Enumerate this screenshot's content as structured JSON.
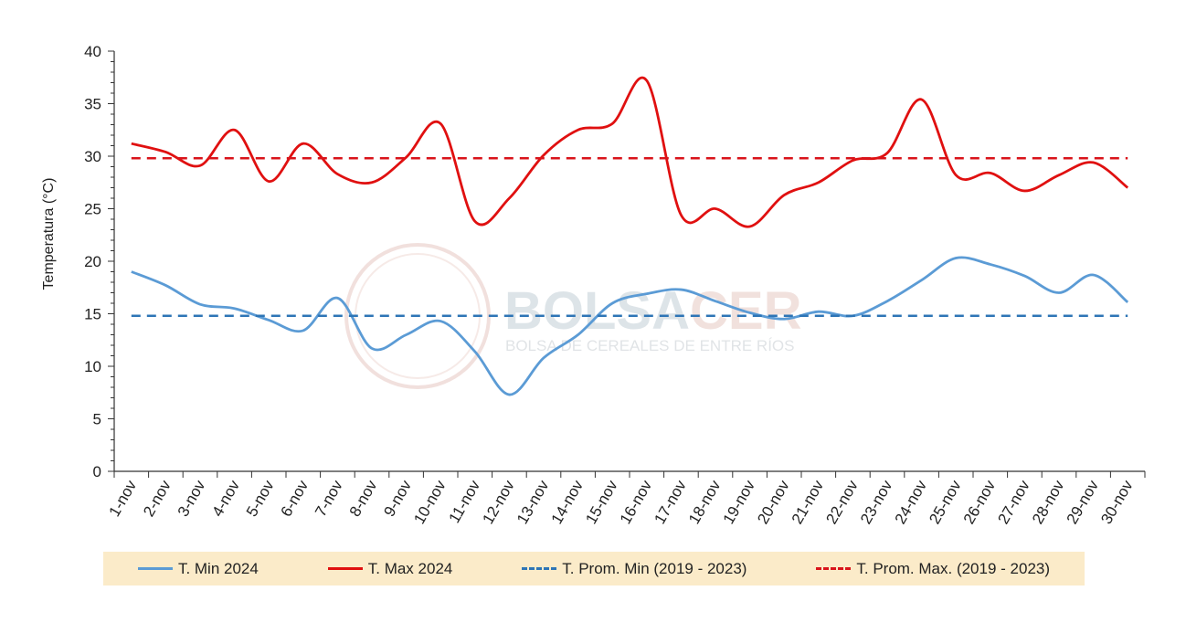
{
  "chart_data": {
    "type": "line",
    "title": "",
    "xlabel": "",
    "ylabel": "Temperatura (°C)",
    "ylim": [
      0,
      40
    ],
    "yticks": [
      0,
      5,
      10,
      15,
      20,
      25,
      30,
      35,
      40
    ],
    "grid": false,
    "legend_position": "bottom",
    "categories": [
      "1-nov",
      "2-nov",
      "3-nov",
      "4-nov",
      "5-nov",
      "6-nov",
      "7-nov",
      "8-nov",
      "9-nov",
      "10-nov",
      "11-nov",
      "12-nov",
      "13-nov",
      "14-nov",
      "15-nov",
      "16-nov",
      "17-nov",
      "18-nov",
      "19-nov",
      "20-nov",
      "21-nov",
      "22-nov",
      "23-nov",
      "24-nov",
      "25-nov",
      "26-nov",
      "27-nov",
      "28-nov",
      "29-nov",
      "30-nov"
    ],
    "series": [
      {
        "name": "T. Min 2024",
        "color": "#5b9bd5",
        "dashed": false,
        "values": [
          19.0,
          17.7,
          15.9,
          15.5,
          14.4,
          13.4,
          16.5,
          11.7,
          13.0,
          14.3,
          11.4,
          7.3,
          10.8,
          13.0,
          16.0,
          16.9,
          17.3,
          16.2,
          15.1,
          14.5,
          15.2,
          14.8,
          16.2,
          18.2,
          20.3,
          19.7,
          18.6,
          17.0,
          18.7,
          16.1
        ]
      },
      {
        "name": "T. Max 2024",
        "color": "#e01010",
        "dashed": false,
        "values": [
          31.2,
          30.4,
          29.1,
          32.5,
          27.6,
          31.2,
          28.3,
          27.5,
          29.9,
          33.1,
          23.8,
          26.0,
          30.1,
          32.5,
          33.1,
          37.2,
          24.4,
          25.0,
          23.3,
          26.3,
          27.5,
          29.6,
          30.3,
          35.4,
          28.2,
          28.4,
          26.7,
          28.2,
          29.4,
          27.0
        ]
      },
      {
        "name": "T. Prom. Min (2019 - 2023)",
        "color": "#2e75b6",
        "dashed": true,
        "values": [
          14.8,
          14.8,
          14.8,
          14.8,
          14.8,
          14.8,
          14.8,
          14.8,
          14.8,
          14.8,
          14.8,
          14.8,
          14.8,
          14.8,
          14.8,
          14.8,
          14.8,
          14.8,
          14.8,
          14.8,
          14.8,
          14.8,
          14.8,
          14.8,
          14.8,
          14.8,
          14.8,
          14.8,
          14.8,
          14.8
        ]
      },
      {
        "name": "T. Prom. Max. (2019 - 2023)",
        "color": "#d9141b",
        "dashed": true,
        "values": [
          29.8,
          29.8,
          29.8,
          29.8,
          29.8,
          29.8,
          29.8,
          29.8,
          29.8,
          29.8,
          29.8,
          29.8,
          29.8,
          29.8,
          29.8,
          29.8,
          29.8,
          29.8,
          29.8,
          29.8,
          29.8,
          29.8,
          29.8,
          29.8,
          29.8,
          29.8,
          29.8,
          29.8,
          29.8,
          29.8
        ]
      }
    ]
  },
  "watermark": {
    "brand": "BOLSACER",
    "subtitle": "BOLSA DE CEREALES DE ENTRE RÍOS"
  }
}
